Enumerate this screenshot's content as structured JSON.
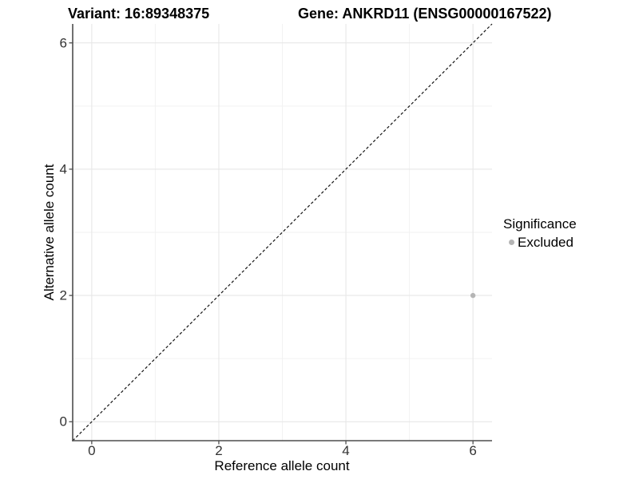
{
  "chart_data": {
    "type": "scatter",
    "title_left": "Variant: 16:89348375",
    "title_right": "Gene: ANKRD11 (ENSG00000167522)",
    "xlabel": "Reference allele count",
    "ylabel": "Alternative allele count",
    "xlim": [
      -0.3,
      6.3
    ],
    "ylim": [
      -0.3,
      6.3
    ],
    "x_ticks": [
      0,
      2,
      4,
      6
    ],
    "y_ticks": [
      0,
      2,
      4,
      6
    ],
    "x_minor_ticks": [
      1,
      3,
      5
    ],
    "y_minor_ticks": [
      1,
      3,
      5
    ],
    "grid": "major+minor",
    "points": [
      {
        "x": 6,
        "y": 2,
        "series": "Excluded"
      }
    ],
    "reference_line": {
      "slope": 1,
      "intercept": 0,
      "style": "dashed",
      "color": "#141414"
    },
    "legend": {
      "position": "right",
      "title": "Significance",
      "items": [
        {
          "label": "Excluded",
          "color": "#b5b5b5",
          "marker": "circle"
        }
      ]
    },
    "colors": {
      "Excluded": "#b5b5b5"
    },
    "style": {
      "background": "#ffffff",
      "grid_major_color": "#e7e7e7",
      "grid_minor_color": "#f2f2f2",
      "axis_line_color": "#4d4d4d",
      "tick_color": "#4d4d4d",
      "tick_label_color": "#333333",
      "point_radius": 3.2,
      "legend_dot_diameter": 7
    }
  }
}
